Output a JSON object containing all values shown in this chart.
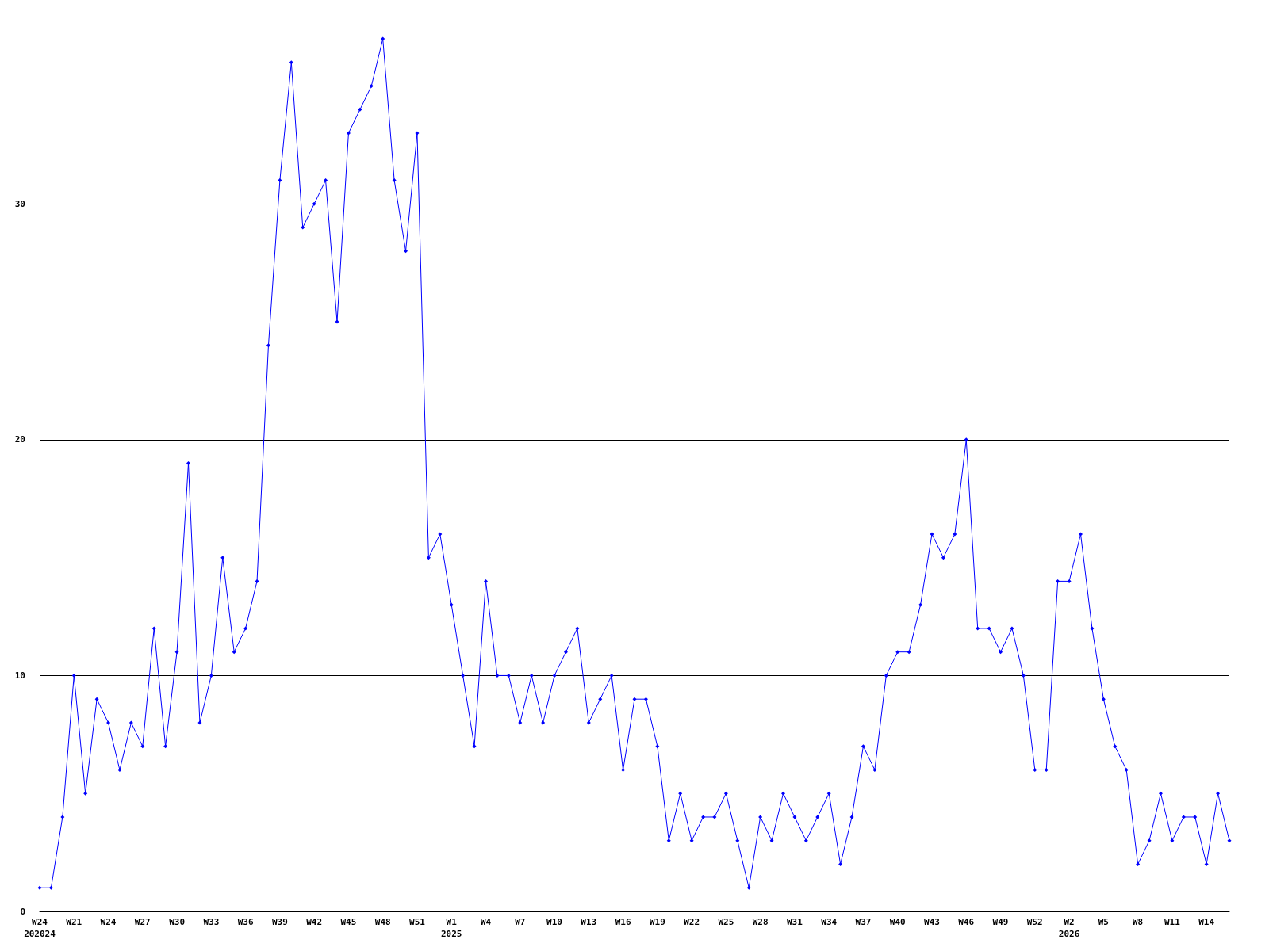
{
  "chart_data": {
    "type": "line",
    "categories": [
      "W24\n202024",
      null,
      null,
      "W21",
      null,
      null,
      "W24",
      null,
      null,
      "W27",
      null,
      null,
      "W30",
      null,
      null,
      "W33",
      null,
      null,
      "W36",
      null,
      null,
      "W39",
      null,
      null,
      "W42",
      null,
      null,
      "W45",
      null,
      null,
      "W48",
      null,
      null,
      "W51",
      null,
      null,
      "W1\n2025",
      null,
      null,
      "W4",
      null,
      null,
      "W7",
      null,
      null,
      "W10",
      null,
      null,
      "W13",
      null,
      null,
      "W16",
      null,
      null,
      "W19",
      null,
      null,
      "W22",
      null,
      null,
      "W25",
      null,
      null,
      "W28",
      null,
      null,
      "W31",
      null,
      null,
      "W34",
      null,
      null,
      "W37",
      null,
      null,
      "W40",
      null,
      null,
      "W43",
      null,
      null,
      "W46",
      null,
      null,
      "W49",
      null,
      null,
      "W52",
      null,
      null,
      "W2\n2026",
      null,
      null,
      "W5",
      null,
      null,
      "W8",
      null,
      null,
      "W11",
      null,
      null,
      "W14",
      null,
      null
    ],
    "series": [
      {
        "color": "#0000ff",
        "values": [
          1,
          1,
          4,
          10,
          5,
          9,
          8,
          6,
          8,
          7,
          12,
          7,
          11,
          19,
          8,
          10,
          15,
          11,
          12,
          14,
          24,
          31,
          36,
          29,
          30,
          31,
          25,
          33,
          34,
          35,
          37,
          31,
          28,
          33,
          15,
          16,
          13,
          10,
          7,
          14,
          10,
          10,
          8,
          10,
          8,
          10,
          11,
          12,
          8,
          9,
          10,
          6,
          9,
          9,
          7,
          3,
          5,
          3,
          4,
          4,
          5,
          3,
          1,
          4,
          3,
          5,
          4,
          3,
          4,
          5,
          2,
          4,
          7,
          6,
          10,
          11,
          11,
          13,
          16,
          15,
          16,
          20,
          12,
          12,
          11,
          12,
          10,
          6,
          6,
          14,
          14,
          16,
          12,
          9,
          7,
          6,
          2,
          3,
          5,
          3,
          4,
          4,
          2,
          5,
          3
        ]
      }
    ],
    "ylim": [
      0,
      37
    ],
    "yticks": [
      0,
      10,
      20,
      30
    ],
    "grid": "y",
    "marker": "diamond",
    "line_style": "solid"
  }
}
